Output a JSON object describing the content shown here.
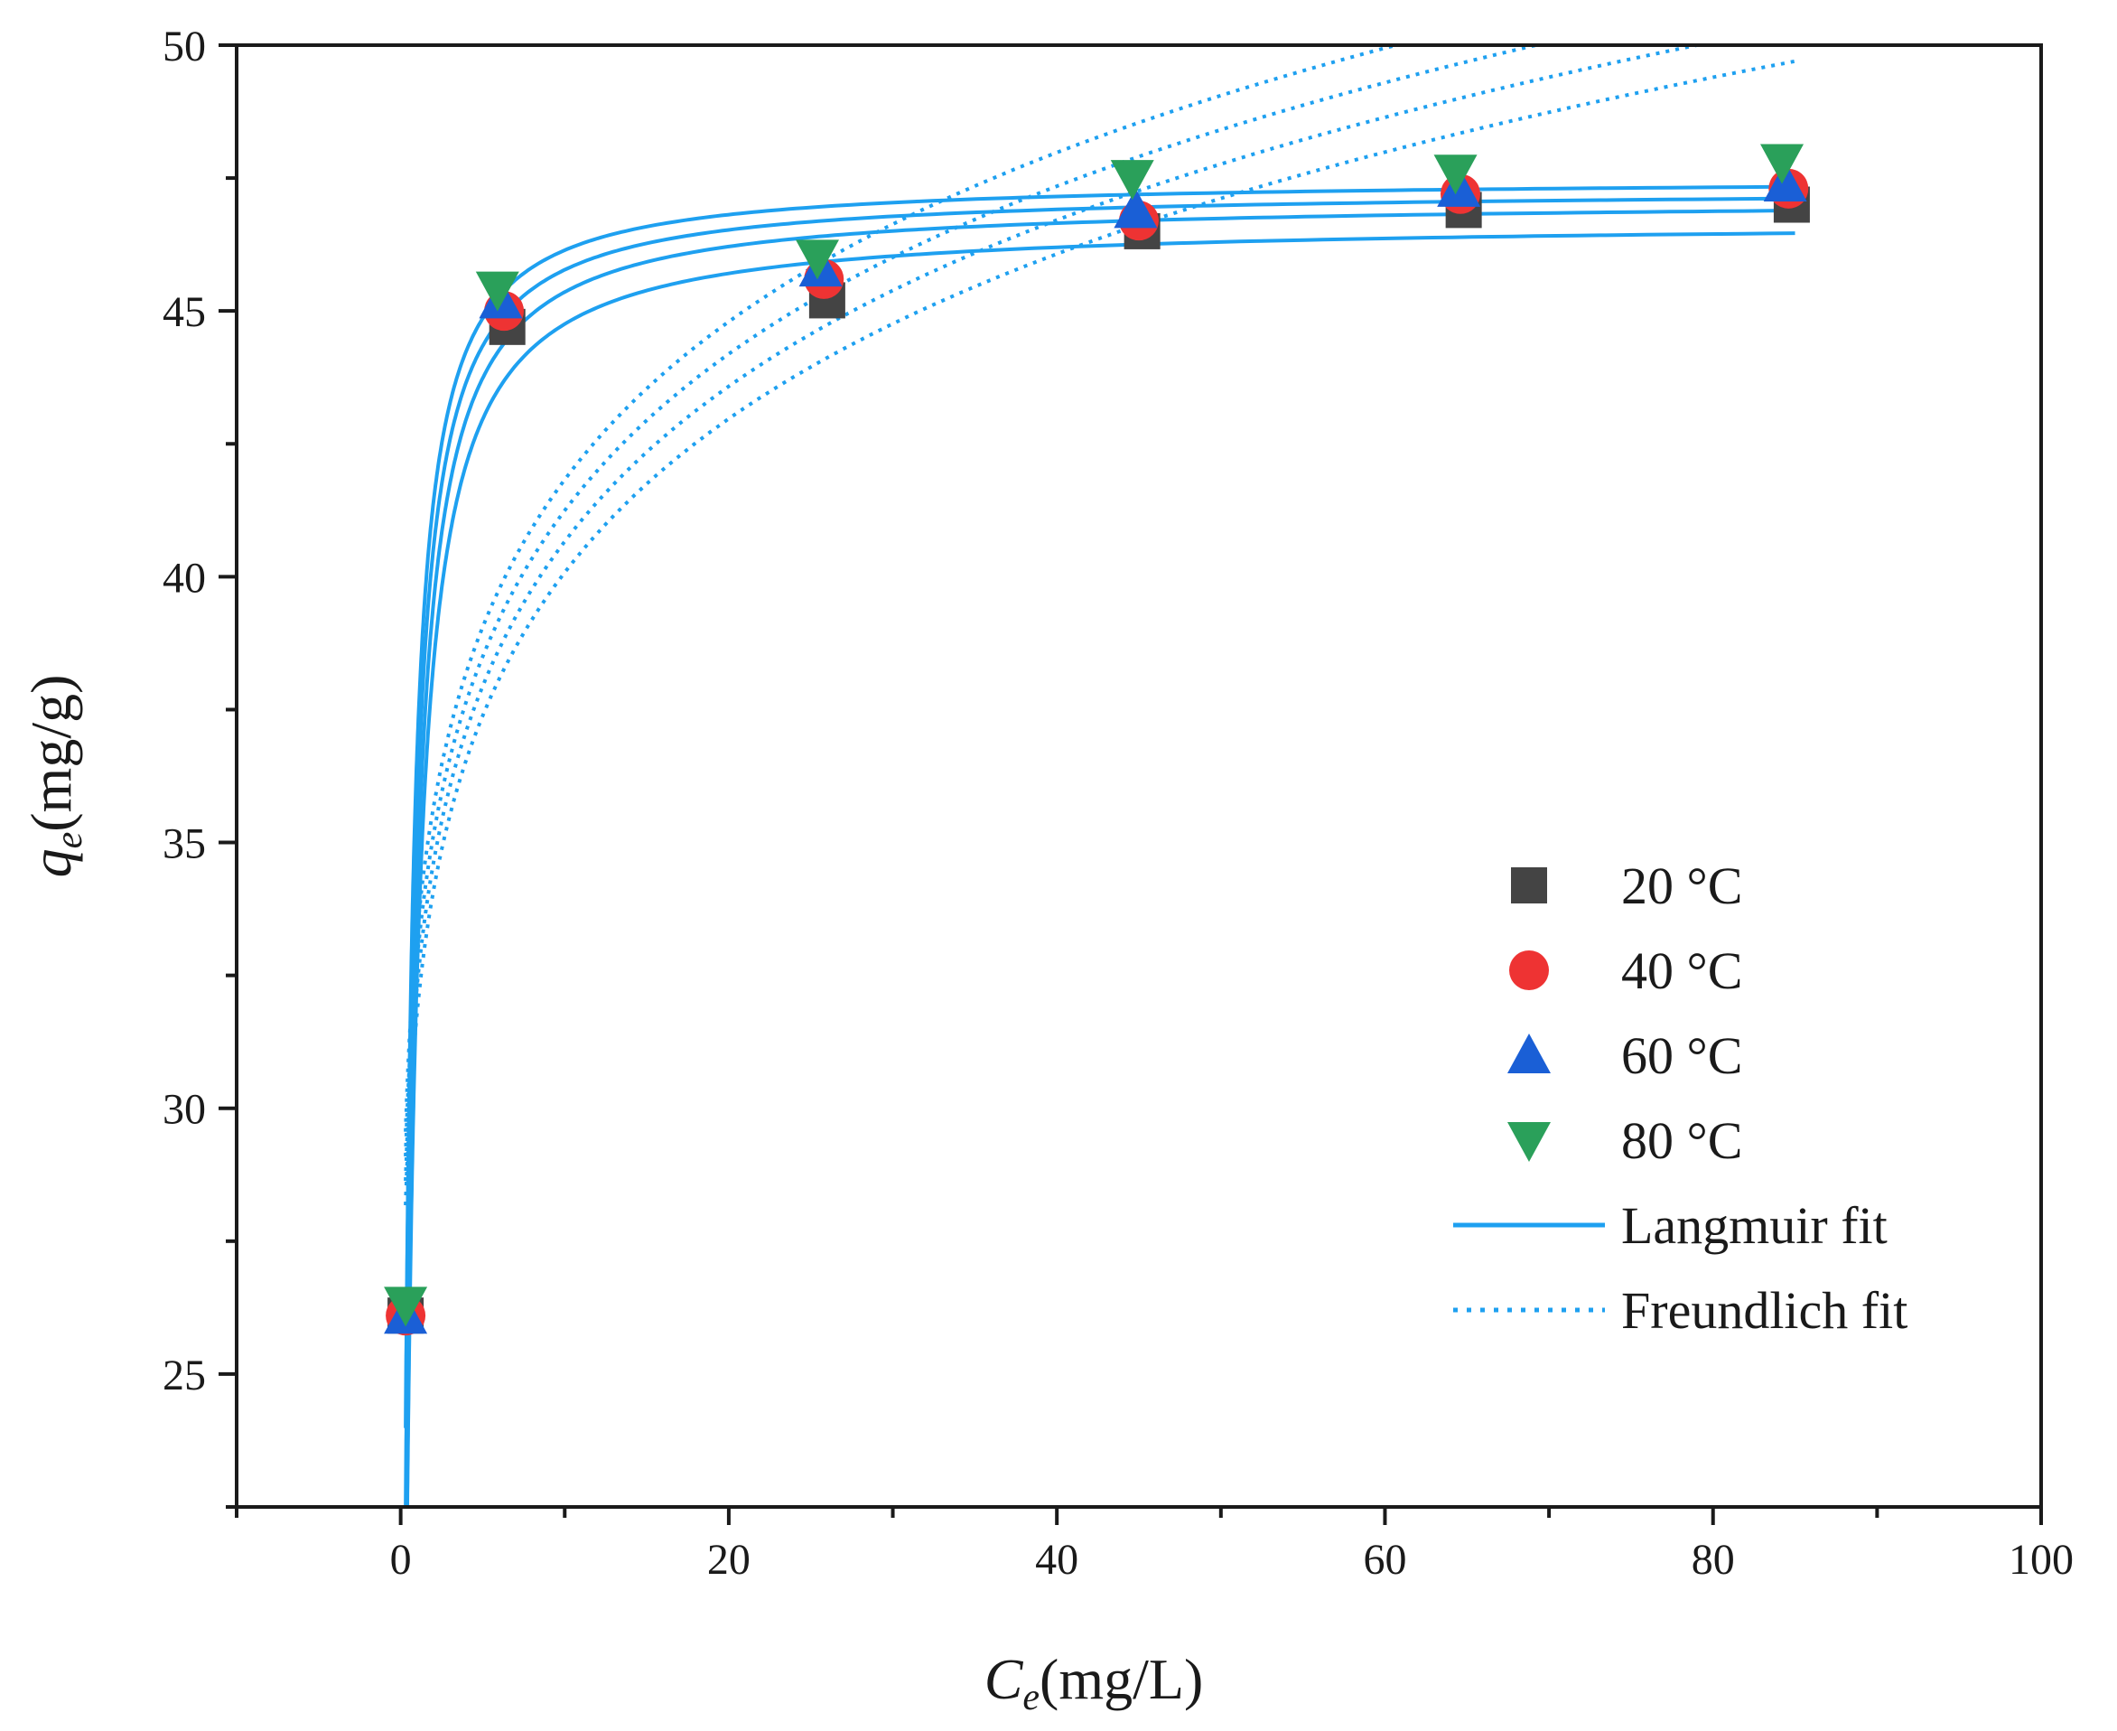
{
  "chart_data": {
    "type": "scatter",
    "xlabel": {
      "symbol": "C",
      "subscript": "e",
      "unit": "(mg/L)"
    },
    "ylabel": {
      "symbol": "q",
      "subscript": "e",
      "unit": "(mg/g)"
    },
    "xlim": [
      -10,
      100
    ],
    "ylim": [
      22.5,
      50
    ],
    "x_ticks": [
      0,
      20,
      40,
      60,
      80,
      100
    ],
    "x_tick_labels": [
      "0",
      "20",
      "40",
      "60",
      "80",
      "100"
    ],
    "y_ticks": [
      25,
      30,
      35,
      40,
      45,
      50
    ],
    "y_tick_labels": [
      "25",
      "30",
      "35",
      "40",
      "45",
      "50"
    ],
    "grid": false,
    "legend_position": "right",
    "series": [
      {
        "name": "20 °C",
        "marker": "square",
        "color": "#444444",
        "x": [
          0.3,
          6.5,
          26.0,
          45.2,
          64.8,
          84.8
        ],
        "y": [
          26.1,
          44.7,
          45.2,
          46.5,
          46.9,
          47.0
        ],
        "langmuir": {
          "qm": 46.7,
          "kl": 2.3
        },
        "freundlich": {
          "kf": 31.8,
          "n": 9.95
        }
      },
      {
        "name": "40 °C",
        "marker": "circle",
        "color": "#ee3333",
        "x": [
          0.3,
          6.3,
          25.8,
          45.0,
          64.6,
          84.6
        ],
        "y": [
          26.1,
          45.0,
          45.6,
          46.7,
          47.2,
          47.3
        ],
        "langmuir": {
          "qm": 47.1,
          "kl": 2.6
        },
        "freundlich": {
          "kf": 32.3,
          "n": 10.0
        }
      },
      {
        "name": "60 °C",
        "marker": "triangle-up",
        "color": "#1a5fd6",
        "x": [
          0.3,
          6.1,
          25.6,
          44.8,
          64.5,
          84.4
        ],
        "y": [
          26.1,
          45.2,
          45.8,
          46.9,
          47.3,
          47.4
        ],
        "langmuir": {
          "qm": 47.3,
          "kl": 3.0
        },
        "freundlich": {
          "kf": 32.8,
          "n": 10.05
        }
      },
      {
        "name": "80 °C",
        "marker": "triangle-down",
        "color": "#2aa05a",
        "x": [
          0.3,
          5.9,
          25.4,
          44.6,
          64.3,
          84.2
        ],
        "y": [
          26.3,
          45.4,
          46.0,
          47.5,
          47.6,
          47.8
        ],
        "langmuir": {
          "qm": 47.5,
          "kl": 3.4
        },
        "freundlich": {
          "kf": 33.3,
          "n": 10.1
        }
      }
    ],
    "fit_lines": [
      {
        "name": "Langmuir fit",
        "style": "solid",
        "color": "#1ea0f0"
      },
      {
        "name": "Freundlich fit",
        "style": "dotted",
        "color": "#1ea0f0"
      }
    ]
  }
}
